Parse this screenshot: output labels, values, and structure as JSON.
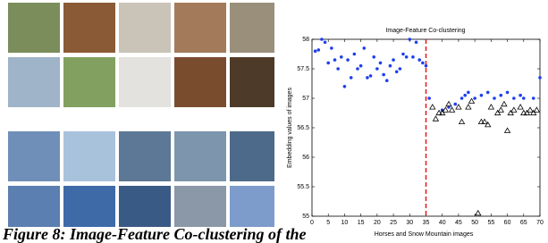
{
  "caption": "Figure 8: Image-Feature Co-clustering of the",
  "chart_data": {
    "type": "scatter",
    "title": "Image-Feature Co-clustering",
    "x_label": "Horses and Snow Mountain images",
    "y_label": "Embedding values of images",
    "xlim": [
      0,
      70
    ],
    "xticks": [
      0,
      5,
      10,
      15,
      20,
      25,
      30,
      35,
      40,
      45,
      50,
      55,
      60,
      65,
      70
    ],
    "ylim": [
      55,
      58
    ],
    "yticks": [
      55,
      55.5,
      56,
      56.5,
      57,
      57.5,
      58
    ],
    "vline": {
      "x": 35,
      "color": "#e8141c"
    },
    "series": [
      {
        "color": "#1f3ff0",
        "marker": "circle",
        "x": [
          1,
          2,
          3,
          4,
          5,
          6,
          7,
          8,
          9,
          10,
          11,
          12,
          13,
          14,
          15,
          16,
          17,
          18,
          19,
          20,
          21,
          22,
          23,
          24,
          25,
          26,
          27,
          28,
          29,
          30,
          31,
          32,
          33,
          34,
          35,
          36,
          40,
          42,
          44,
          46,
          47,
          48,
          50,
          52,
          54,
          56,
          58,
          60,
          62,
          64,
          65,
          68,
          70
        ],
        "values": [
          57.8,
          57.82,
          58.0,
          57.95,
          57.6,
          57.85,
          57.65,
          57.5,
          57.7,
          57.2,
          57.65,
          57.35,
          57.75,
          57.5,
          57.55,
          57.85,
          57.35,
          57.38,
          57.7,
          57.5,
          57.6,
          57.4,
          57.3,
          57.55,
          57.65,
          57.45,
          57.5,
          57.75,
          57.7,
          58.0,
          57.7,
          57.95,
          57.65,
          57.6,
          57.55,
          57.0,
          56.8,
          56.85,
          56.9,
          57.0,
          57.05,
          57.1,
          57.0,
          57.05,
          57.1,
          57.0,
          57.05,
          57.1,
          57.0,
          57.05,
          57.0,
          57.0,
          57.35
        ]
      },
      {
        "color": "#000000",
        "marker": "triangle",
        "x": [
          37,
          38,
          39,
          40,
          41,
          42,
          43,
          45,
          46,
          48,
          49,
          51,
          52,
          53,
          54,
          55,
          57,
          58,
          59,
          60,
          61,
          62,
          64,
          65,
          66,
          67,
          68,
          69
        ],
        "values": [
          56.85,
          56.65,
          56.75,
          56.75,
          56.8,
          56.9,
          56.8,
          56.85,
          56.6,
          56.85,
          56.95,
          55.05,
          56.6,
          56.6,
          56.55,
          56.85,
          56.75,
          56.8,
          56.9,
          56.45,
          56.75,
          56.8,
          56.85,
          56.75,
          56.75,
          56.8,
          56.75,
          56.8
        ]
      }
    ]
  }
}
